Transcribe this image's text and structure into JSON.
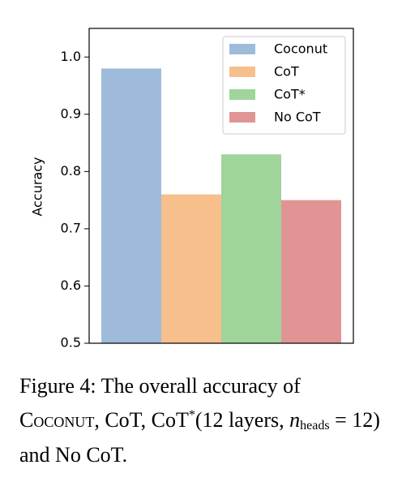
{
  "chart_data": {
    "type": "bar",
    "ylabel": "Accuracy",
    "series": [
      {
        "name": "Coconut",
        "color": "#9ebcda",
        "values": [
          0.98
        ]
      },
      {
        "name": "CoT",
        "color": "#f7bf8c",
        "values": [
          0.76
        ]
      },
      {
        "name": "CoT*",
        "color": "#9fd49b",
        "values": [
          0.83
        ]
      },
      {
        "name": "No CoT",
        "color": "#e09594",
        "values": [
          0.75
        ]
      }
    ],
    "ylim": [
      0.5,
      1.05
    ],
    "yticks": [
      0.5,
      0.6,
      0.7,
      0.8,
      0.9,
      {
        "value": 1,
        "label": "1.0"
      }
    ],
    "legend": "upper right"
  },
  "caption": [
    "Figure 4:",
    " The overall accuracy of ",
    "Coconut",
    ", CoT, CoT",
    "*",
    "(12 layers, ",
    "n",
    "heads",
    " = 12) and No CoT."
  ]
}
